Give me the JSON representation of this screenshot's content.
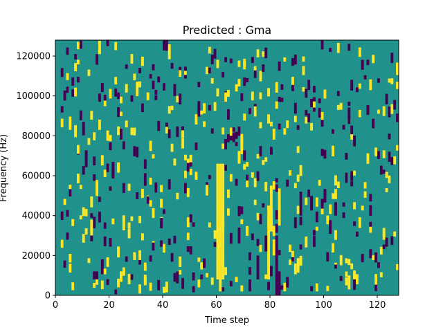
{
  "chart_data": {
    "type": "heatmap",
    "title": "Predicted : Gma",
    "xlabel": "Time step",
    "ylabel": "Frequency (Hz)",
    "xlim": [
      0,
      128
    ],
    "ylim": [
      0,
      128000
    ],
    "x_ticks": [
      0,
      20,
      40,
      60,
      80,
      100,
      120
    ],
    "x_tick_labels": [
      "0",
      "20",
      "40",
      "60",
      "80",
      "100",
      "120"
    ],
    "y_ticks": [
      0,
      20000,
      40000,
      60000,
      80000,
      100000,
      120000
    ],
    "y_tick_labels": [
      "0",
      "20000",
      "40000",
      "60000",
      "80000",
      "100000",
      "120000"
    ],
    "grid": false,
    "colormap": "viridis",
    "colors": {
      "background": "#21918c",
      "high": "#fde725",
      "low": "#440154"
    },
    "yellow_streaks": [
      [
        60,
        8000,
        66000
      ],
      [
        61,
        2000,
        66000
      ],
      [
        62,
        8000,
        66000
      ],
      [
        79,
        8000,
        45000
      ],
      [
        80,
        32000,
        55000
      ],
      [
        83,
        35000,
        50000
      ],
      [
        81,
        20000,
        28000
      ],
      [
        5,
        83000,
        88000
      ],
      [
        13,
        30000,
        38000
      ],
      [
        22,
        123000,
        127000
      ],
      [
        33,
        6000,
        10000
      ],
      [
        69,
        2000,
        5000
      ],
      [
        97,
        2000,
        6000
      ],
      [
        109,
        3000,
        10000
      ]
    ],
    "purple_streaks": [
      [
        82,
        0,
        30000
      ],
      [
        83,
        0,
        12000
      ],
      [
        75,
        8000,
        20000
      ],
      [
        45,
        6000,
        12000
      ],
      [
        91,
        40000,
        52000
      ],
      [
        72,
        2000,
        8000
      ],
      [
        78,
        22000,
        30000
      ],
      [
        14,
        8000,
        12000
      ],
      [
        15,
        8000,
        12000
      ],
      [
        44,
        100000,
        106000
      ],
      [
        19,
        125000,
        128000
      ],
      [
        104,
        40000,
        46000
      ],
      [
        68,
        26000,
        34000
      ]
    ]
  }
}
